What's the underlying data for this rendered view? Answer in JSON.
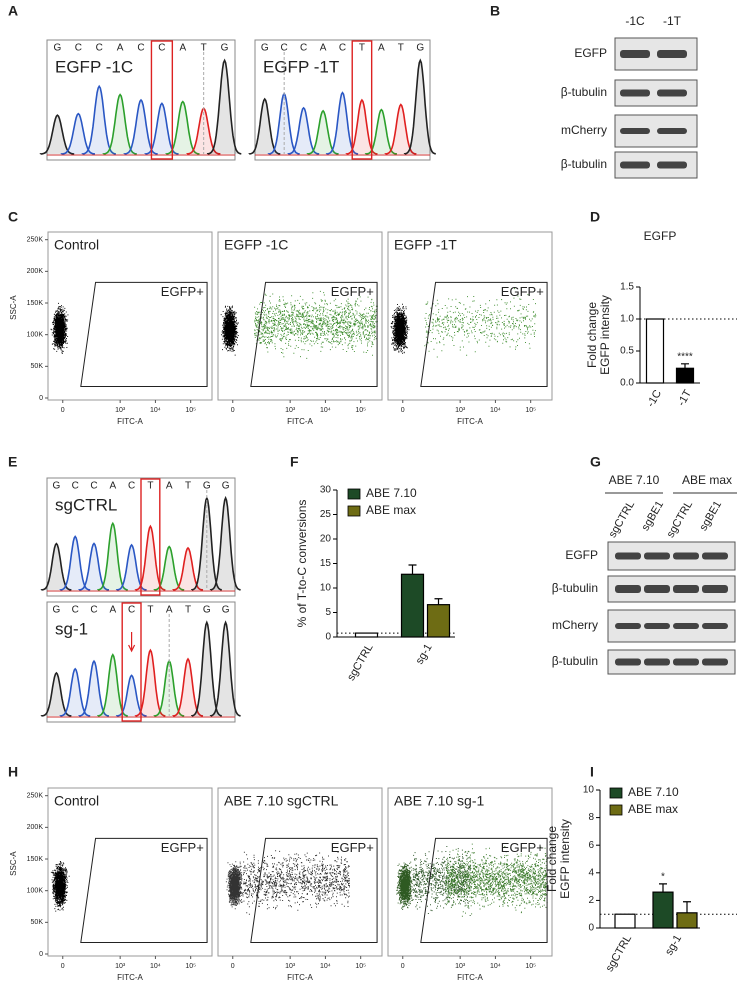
{
  "panel_labels": [
    "A",
    "B",
    "C",
    "D",
    "E",
    "F",
    "G",
    "H",
    "I"
  ],
  "panel_a": {
    "traces": [
      {
        "bases": [
          "G",
          "C",
          "C",
          "A",
          "C",
          "C",
          "A",
          "T",
          "G"
        ],
        "label": "EGFP -1C"
      },
      {
        "bases": [
          "G",
          "C",
          "C",
          "A",
          "C",
          "T",
          "A",
          "T",
          "G"
        ],
        "label": "EGFP -1T"
      }
    ]
  },
  "panel_b": {
    "lanes": [
      "-1C",
      "-1T"
    ],
    "rows": [
      "EGFP",
      "β-tubulin",
      "mCherry",
      "β-tubulin"
    ]
  },
  "flow_axes": {
    "ylabel": "SSC-A",
    "xlabel": "FITC-A",
    "ylim": [
      0,
      262144
    ],
    "yticks": [
      {
        "value": 250000,
        "label": "250K"
      },
      {
        "value": 200000,
        "label": "200K"
      },
      {
        "value": 150000,
        "label": "150K"
      },
      {
        "value": 100000,
        "label": "100K"
      },
      {
        "value": 50000,
        "label": "50K"
      },
      0
    ],
    "xticks": [
      0,
      {
        "value": 1000,
        "label": "10³"
      },
      {
        "value": 10000,
        "label": "10⁴"
      },
      {
        "value": 100000,
        "label": "10⁵"
      }
    ]
  },
  "panel_c": {
    "plots": [
      {
        "title": "Control",
        "gate": "EGFP+"
      },
      {
        "title": "EGFP -1C",
        "gate": "EGFP+"
      },
      {
        "title": "EGFP -1T",
        "gate": "EGFP+"
      }
    ]
  },
  "panel_e": {
    "traces": [
      {
        "bases": [
          "G",
          "C",
          "C",
          "A",
          "C",
          "T",
          "A",
          "T",
          "G",
          "G"
        ],
        "label": "sgCTRL"
      },
      {
        "bases": [
          "G",
          "C",
          "C",
          "A",
          "C",
          "T",
          "A",
          "T",
          "G",
          "G"
        ],
        "label": "sg-1"
      }
    ]
  },
  "panel_g": {
    "groups": [
      "ABE 7.10",
      "ABE max"
    ],
    "lanes": [
      "sgCTRL",
      "sgBE1",
      "sgCTRL",
      "sgBE1"
    ],
    "rows": [
      "EGFP",
      "β-tubulin",
      "mCherry",
      "β-tubulin"
    ]
  },
  "panel_h": {
    "plots": [
      {
        "title": "Control",
        "gate": "EGFP+"
      },
      {
        "title": "ABE 7.10 sgCTRL",
        "gate": "EGFP+"
      },
      {
        "title": "ABE 7.10 sg-1",
        "gate": "EGFP+"
      }
    ]
  },
  "chart_data": [
    {
      "type": "bar",
      "title": "EGFP",
      "ylabel": [
        "Fold change",
        "EGFP intensity"
      ],
      "categories": [
        "-1C",
        "-1T"
      ],
      "series": [
        {
          "colors": [
            "#ffffff",
            "#000000"
          ],
          "values": [
            1.0,
            0.23
          ],
          "errors": [
            null,
            0.07
          ],
          "significance": [
            null,
            "****"
          ]
        }
      ],
      "ylim": [
        0,
        1.5
      ],
      "yticks": [
        {
          "value": 0,
          "label": "0.0"
        },
        {
          "value": 0.5,
          "label": "0.5"
        },
        {
          "value": 1,
          "label": "1.0"
        },
        {
          "value": 1.5,
          "label": "1.5"
        }
      ],
      "reference_line": 1
    },
    {
      "type": "bar",
      "ylabel": [
        "% of T-to-C conversions"
      ],
      "categories": [
        "sgCTRL",
        "sg-1"
      ],
      "series": [
        {
          "color": "#ffffff",
          "values": [
            0.8,
            null
          ]
        },
        {
          "name": "ABE 7.10",
          "color": "#1d4a26",
          "values": [
            null,
            12.8
          ],
          "errors": [
            null,
            1.9
          ]
        },
        {
          "name": "ABE max",
          "color": "#6e6c14",
          "values": [
            null,
            6.6
          ],
          "errors": [
            null,
            1.2
          ]
        }
      ],
      "ylim": [
        0,
        30
      ],
      "yticks": [
        0,
        5,
        10,
        15,
        20,
        25,
        30
      ],
      "reference_line": 0.8,
      "legend": "upper left"
    },
    {
      "type": "bar",
      "ylabel": [
        "Fold change",
        "EGFP intensity"
      ],
      "categories": [
        "sgCTRL",
        "sg-1"
      ],
      "series": [
        {
          "color": "#ffffff",
          "values": [
            1.0,
            null
          ]
        },
        {
          "name": "ABE 7.10",
          "color": "#1d4a26",
          "values": [
            null,
            2.6
          ],
          "errors": [
            null,
            0.6
          ],
          "significance": [
            null,
            "*"
          ]
        },
        {
          "name": "ABE max",
          "color": "#6e6c14",
          "values": [
            null,
            1.1
          ],
          "errors": [
            null,
            0.8
          ]
        }
      ],
      "ylim": [
        0,
        10
      ],
      "yticks": [
        0,
        2,
        4,
        6,
        8,
        10
      ],
      "reference_line": 1,
      "legend": "upper left"
    }
  ]
}
